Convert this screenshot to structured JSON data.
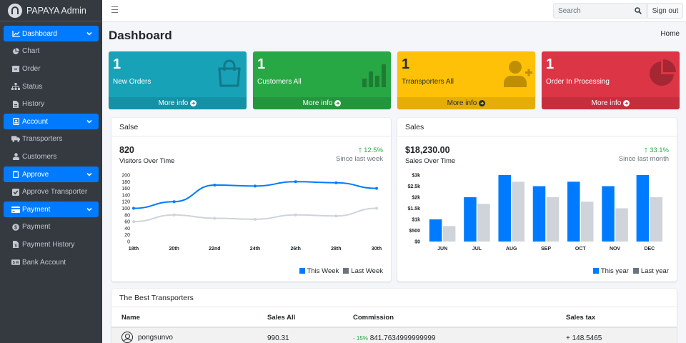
{
  "brand": {
    "name": "PAPAYA Admin"
  },
  "sidebar": {
    "items": [
      {
        "label": "Dashboard",
        "icon": "chart-area-icon",
        "active": true
      },
      {
        "label": "Chart",
        "icon": "chart-pie-icon"
      },
      {
        "label": "Order",
        "icon": "box-icon"
      },
      {
        "label": "Status",
        "icon": "sitemap-icon"
      },
      {
        "label": "History",
        "icon": "file-icon"
      },
      {
        "label": "Account",
        "icon": "id-card-icon",
        "active": true
      },
      {
        "label": "Transporters",
        "icon": "truck-icon"
      },
      {
        "label": "Customers",
        "icon": "user-tie-icon"
      },
      {
        "label": "Approve",
        "icon": "clipboard-icon",
        "active": true
      },
      {
        "label": "Approve Transporter",
        "icon": "check-square-icon"
      },
      {
        "label": "Payment",
        "icon": "credit-card-icon",
        "active": true
      },
      {
        "label": "Payment",
        "icon": "coin-icon"
      },
      {
        "label": "Payment History",
        "icon": "file-invoice-icon"
      },
      {
        "label": "Bank Account",
        "icon": "money-check-icon"
      }
    ]
  },
  "topbar": {
    "search_placeholder": "Search",
    "signout_label": "Sign out"
  },
  "header": {
    "title": "Dashboard",
    "breadcrumb": "Home"
  },
  "boxes": [
    {
      "value": "1",
      "label": "New Orders",
      "more": "More info",
      "color": "#17a2b8",
      "icon": "shopping-bag-icon"
    },
    {
      "value": "1",
      "label": "Customers All",
      "more": "More info",
      "color": "#28a745",
      "icon": "bar-chart-icon"
    },
    {
      "value": "1",
      "label": "Trransporters All",
      "more": "More info",
      "color": "#ffc107",
      "icon": "user-plus-icon"
    },
    {
      "value": "1",
      "label": "Order In Processing",
      "more": "More info",
      "color": "#dc3545",
      "icon": "pie-chart-icon"
    }
  ],
  "visitors_card": {
    "title": "Salse",
    "big_value": "820",
    "sub": "Visitors Over Time",
    "pct": "12.5%",
    "since": "Since last week",
    "legend": [
      "This Week",
      "Last Week"
    ]
  },
  "sales_card": {
    "title": "Sales",
    "big_value": "$18,230.00",
    "sub": "Sales Over Time",
    "pct": "33.1%",
    "since": "Since last month",
    "legend": [
      "This year",
      "Last year"
    ]
  },
  "chart_data": [
    {
      "type": "line",
      "x": [
        "18th",
        "20th",
        "22nd",
        "24th",
        "26th",
        "28th",
        "30th"
      ],
      "series": [
        {
          "name": "This Week",
          "values": [
            100,
            120,
            170,
            167,
            180,
            177,
            160
          ],
          "color": "#007bff"
        },
        {
          "name": "Last Week",
          "values": [
            60,
            80,
            70,
            67,
            80,
            77,
            100
          ],
          "color": "#ced4da"
        }
      ],
      "yticks": [
        0,
        20,
        40,
        60,
        80,
        100,
        120,
        140,
        160,
        180,
        200
      ],
      "ylim": [
        0,
        200
      ],
      "legend": "bottom-right"
    },
    {
      "type": "bar",
      "categories": [
        "JUN",
        "JUL",
        "AUG",
        "SEP",
        "OCT",
        "NOV",
        "DEC"
      ],
      "series": [
        {
          "name": "This year",
          "values": [
            1000,
            2000,
            3000,
            2500,
            2700,
            2500,
            3000
          ],
          "color": "#007bff"
        },
        {
          "name": "Last year",
          "values": [
            700,
            1700,
            2700,
            2000,
            1800,
            1500,
            2000
          ],
          "color": "#ced4da"
        }
      ],
      "yticks": [
        "$0",
        "$500",
        "$1k",
        "$1.5k",
        "$2k",
        "$2.5k",
        "$3k"
      ],
      "ylim": [
        0,
        3000
      ],
      "legend": "bottom-right"
    }
  ],
  "transporters": {
    "title": "The Best Transporters",
    "columns": [
      "Name",
      "Sales All",
      "Commission",
      "Sales tax"
    ],
    "rows": [
      {
        "name": "pongsunvo",
        "sales_all": "990.31",
        "commission_change": "- 15%",
        "commission": "841.7634999999999",
        "sales_tax": "+ 148.5465"
      }
    ]
  }
}
